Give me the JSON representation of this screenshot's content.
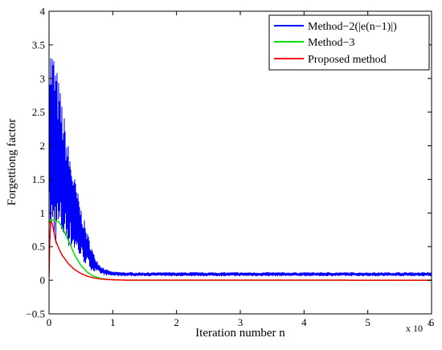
{
  "chart_data": {
    "type": "line",
    "xlabel": "Iteration number n",
    "ylabel": "Forgettiong factor",
    "x_multiplier_label": "x 10",
    "x_multiplier_exp": "4",
    "xlim": [
      0,
      6
    ],
    "ylim": [
      -0.5,
      4
    ],
    "x_ticks": [
      0,
      1,
      2,
      3,
      4,
      5,
      6
    ],
    "y_ticks": [
      -0.5,
      0,
      0.5,
      1,
      1.5,
      2,
      2.5,
      3,
      3.5,
      4
    ],
    "x_tick_labels": [
      "0",
      "1",
      "2",
      "3",
      "4",
      "5",
      "6"
    ],
    "y_tick_labels": [
      "−0.5",
      "0",
      "0.5",
      "1",
      "1.5",
      "2",
      "2.5",
      "3",
      "3.5",
      "4"
    ],
    "grid": false,
    "legend_position": "top-right",
    "series": [
      {
        "name": "Method−2(|e(n−1)|)",
        "color": "#0000ff",
        "style": "noisy-band",
        "x": [
          0,
          0.03,
          0.06,
          0.1,
          0.2,
          0.3,
          0.4,
          0.5,
          0.6,
          0.7,
          0.8,
          0.9,
          1.0,
          1.2,
          1.5,
          2,
          3,
          4,
          5,
          6
        ],
        "upper": [
          3.6,
          3.55,
          3.5,
          3.3,
          2.7,
          2.05,
          1.55,
          1.1,
          0.72,
          0.4,
          0.23,
          0.16,
          0.13,
          0.12,
          0.12,
          0.12,
          0.12,
          0.12,
          0.12,
          0.12
        ],
        "lower": [
          0.45,
          0.4,
          0.45,
          0.5,
          0.55,
          0.5,
          0.4,
          0.3,
          0.2,
          0.12,
          0.09,
          0.07,
          0.065,
          0.06,
          0.06,
          0.06,
          0.06,
          0.06,
          0.06,
          0.06
        ]
      },
      {
        "name": "Method−3",
        "color": "#00dd00",
        "x": [
          0,
          0.02,
          0.05,
          0.1,
          0.15,
          0.2,
          0.3,
          0.4,
          0.5,
          0.6,
          0.7,
          0.8,
          0.9,
          1.0,
          1.2,
          6
        ],
        "y": [
          0.85,
          0.9,
          0.9,
          0.89,
          0.87,
          0.8,
          0.6,
          0.38,
          0.22,
          0.12,
          0.06,
          0.03,
          0.015,
          0.008,
          0.002,
          0
        ]
      },
      {
        "name": "Proposed method",
        "color": "#ff0000",
        "x": [
          0,
          0.01,
          0.02,
          0.04,
          0.06,
          0.08,
          0.1,
          0.15,
          0.2,
          0.3,
          0.4,
          0.5,
          0.6,
          0.7,
          0.8,
          0.9,
          1.0,
          1.2,
          6
        ],
        "y": [
          0.05,
          0.55,
          0.85,
          0.88,
          0.8,
          0.7,
          0.6,
          0.48,
          0.38,
          0.25,
          0.16,
          0.1,
          0.06,
          0.035,
          0.02,
          0.012,
          0.007,
          0.002,
          0
        ]
      }
    ]
  }
}
